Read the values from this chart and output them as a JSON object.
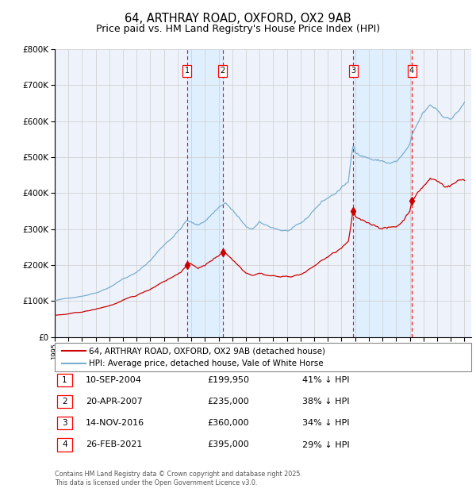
{
  "title": "64, ARTHRAY ROAD, OXFORD, OX2 9AB",
  "subtitle": "Price paid vs. HM Land Registry's House Price Index (HPI)",
  "legend_line1": "64, ARTHRAY ROAD, OXFORD, OX2 9AB (detached house)",
  "legend_line2": "HPI: Average price, detached house, Vale of White Horse",
  "transactions": [
    {
      "num": 1,
      "date": "10-SEP-2004",
      "price": "£199,950",
      "pct": "41% ↓ HPI",
      "x": 2004.69
    },
    {
      "num": 2,
      "date": "20-APR-2007",
      "price": "£235,000",
      "pct": "38% ↓ HPI",
      "x": 2007.3
    },
    {
      "num": 3,
      "date": "14-NOV-2016",
      "price": "£360,000",
      "pct": "34% ↓ HPI",
      "x": 2016.87
    },
    {
      "num": 4,
      "date": "26-FEB-2021",
      "price": "£395,000",
      "pct": "29% ↓ HPI",
      "x": 2021.15
    }
  ],
  "footer": "Contains HM Land Registry data © Crown copyright and database right 2025.\nThis data is licensed under the Open Government Licence v3.0.",
  "ylim": [
    0,
    800000
  ],
  "xlim": [
    1995.0,
    2025.5
  ],
  "red_color": "#cc0000",
  "blue_color": "#7aadcf",
  "shade_color": "#ddeeff",
  "background_color": "#eef3fb",
  "grid_color": "#cccccc",
  "marker_color": "#cc0000"
}
